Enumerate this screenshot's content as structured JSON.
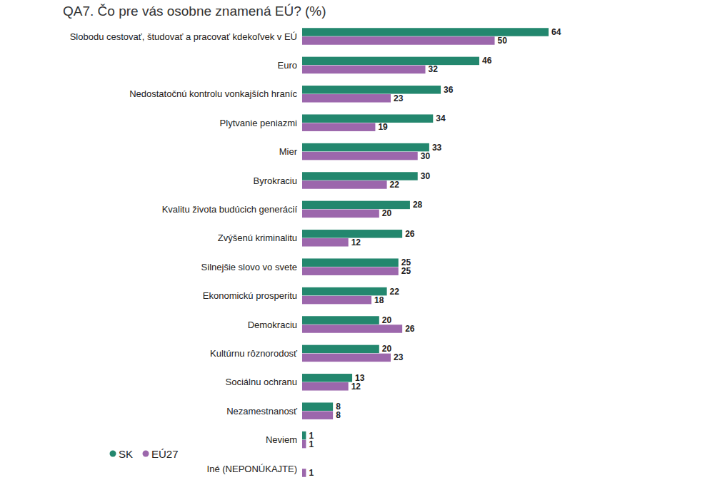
{
  "chart_data": {
    "type": "bar",
    "orientation": "horizontal",
    "title": "QA7. Čo pre vás osobne znamená EÚ? (%)",
    "categories": [
      "Slobodu cestovať, študovať a pracovať kdekoľvek v EÚ",
      "Euro",
      "Nedostatočnú kontrolu vonkajších hraníc",
      "Plytvanie peniazmi",
      "Mier",
      "Byrokraciu",
      "Kvalitu života budúcich generácií",
      "Zvýšenú kriminalitu",
      "Silnejšie slovo vo svete",
      "Ekonomickú prosperitu",
      "Demokraciu",
      "Kultúrnu rôznorodosť",
      "Sociálnu ochranu",
      "Nezamestnanosť",
      "Neviem",
      "Iné (NEPONÚKAJTE)"
    ],
    "series": [
      {
        "name": "SK",
        "color": "#23876e",
        "values": [
          64,
          46,
          36,
          34,
          33,
          30,
          28,
          26,
          25,
          22,
          20,
          20,
          13,
          8,
          1,
          null
        ]
      },
      {
        "name": "EÚ27",
        "color": "#9c67ac",
        "values": [
          50,
          32,
          23,
          19,
          30,
          22,
          20,
          12,
          25,
          18,
          26,
          23,
          12,
          8,
          1,
          1
        ]
      }
    ],
    "xlim": [
      0,
      64
    ],
    "data_labels": true,
    "tick_labels": false,
    "grid": false,
    "legend": "bottom-left"
  }
}
